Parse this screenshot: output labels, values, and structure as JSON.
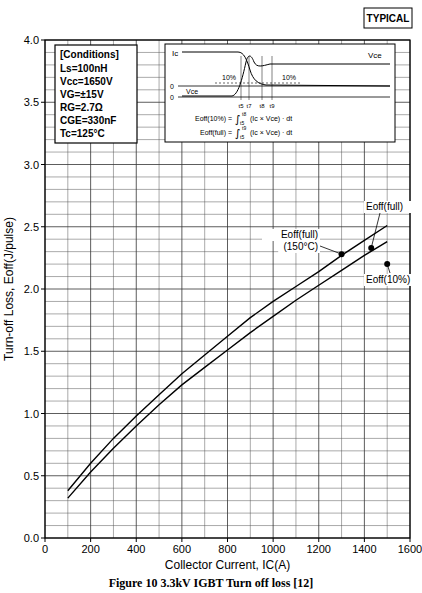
{
  "chart_data": {
    "type": "line",
    "badge": "TYPICAL",
    "caption": "Figure 10 3.3kV IGBT Turn off loss [12]",
    "x_label": "Collector Current, IC(A)",
    "y_label": "Turn-off Loss, Eoff(J/pulse)",
    "xlim": [
      0,
      1600
    ],
    "ylim": [
      0,
      4
    ],
    "xticks": [
      0,
      200,
      400,
      600,
      800,
      1000,
      1200,
      1400,
      1600
    ],
    "yticks": [
      {
        "value": 0,
        "label": "0.0"
      },
      0.5,
      {
        "value": 1,
        "label": "1.0"
      },
      1.5,
      {
        "value": 2,
        "label": "2.0"
      },
      2.5,
      {
        "value": 3,
        "label": "3.0"
      },
      3.5,
      {
        "value": 4,
        "label": "4.0"
      }
    ],
    "grid": true,
    "x": [
      100,
      200,
      300,
      400,
      500,
      600,
      700,
      800,
      900,
      1000,
      1100,
      1200,
      1300,
      1400,
      1500
    ],
    "series": [
      {
        "color": "#000000",
        "line_style": "solid",
        "values": [
          0.38,
          0.6,
          0.8,
          0.98,
          1.15,
          1.32,
          1.47,
          1.62,
          1.77,
          1.9,
          2.02,
          2.14,
          2.27,
          2.39,
          2.51
        ]
      },
      {
        "color": "#000000",
        "line_style": "solid",
        "values": [
          0.32,
          0.53,
          0.72,
          0.9,
          1.07,
          1.23,
          1.37,
          1.51,
          1.65,
          1.78,
          1.91,
          2.03,
          2.15,
          2.27,
          2.38
        ]
      }
    ],
    "annotations": [
      {
        "lines": [
          "Eoff(full)",
          "(150°C)"
        ],
        "x": 1300,
        "y": 2.28
      },
      {
        "lines": [
          "Eoff(full)"
        ],
        "x": 1430,
        "y": 2.33
      },
      {
        "lines": [
          "Eoff(10%)"
        ],
        "x": 1500,
        "y": 2.2
      }
    ],
    "conditions": {
      "title": "[Conditions]",
      "lines": [
        "Ls=100nH",
        "Vcc=1650V",
        "VG=±15V",
        "RG=2.7Ω",
        "CGE=330nF",
        "Tc=125°C"
      ]
    },
    "inset": {
      "ic_label": "Ic",
      "vce_label": "Vce",
      "vce_axis_label": "Vce",
      "pct_labels": [
        "10%",
        "10%"
      ],
      "zero_labels": [
        "0",
        "0"
      ],
      "time_labels": [
        "t5",
        "t7",
        "t8",
        "t9"
      ],
      "formulas": [
        {
          "lhs": "Eoff(10%) =",
          "sign": "∫",
          "from": "t5",
          "to": "t8",
          "integrand": "(Ic × Vce) · dt"
        },
        {
          "lhs": "Eoff(full) =",
          "sign": "∫",
          "from": "t5",
          "to": "t9",
          "integrand": "(Ic × Vce) · dt"
        }
      ]
    }
  }
}
